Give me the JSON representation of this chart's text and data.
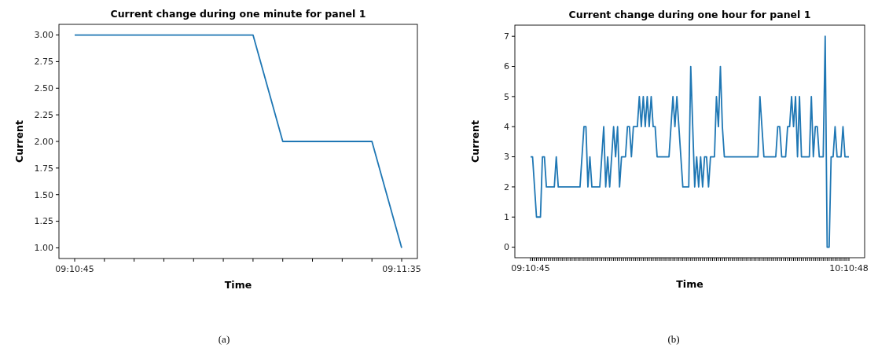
{
  "chart_data": [
    {
      "type": "line",
      "title": "Current change during one minute for panel 1",
      "xlabel": "Time",
      "ylabel": "Current",
      "categories": [
        "09:10:45",
        null,
        null,
        null,
        null,
        null,
        null,
        null,
        null,
        null,
        null,
        "09:11:35"
      ],
      "series": [
        {
          "color": "#1f77b4",
          "values": [
            3,
            3,
            3,
            3,
            3,
            3,
            3,
            2,
            2,
            2,
            2,
            1
          ]
        }
      ],
      "ylim": [
        0.9,
        3.1
      ],
      "yticks": [
        {
          "value": 1,
          "label": "1.00"
        },
        {
          "value": 1.25,
          "label": "1.25"
        },
        {
          "value": 1.5,
          "label": "1.50"
        },
        {
          "value": 1.75,
          "label": "1.75"
        },
        {
          "value": 2,
          "label": "2.00"
        },
        {
          "value": 2.25,
          "label": "2.25"
        },
        {
          "value": 2.5,
          "label": "2.50"
        },
        {
          "value": 2.75,
          "label": "2.75"
        },
        {
          "value": 3,
          "label": "3.00"
        }
      ],
      "grid": false,
      "annotations": [
        "(a)"
      ]
    },
    {
      "type": "line",
      "title": "Current change during one hour for panel 1",
      "xlabel": "Time",
      "ylabel": "Current",
      "categories": [
        "09:10:45",
        null,
        null,
        null,
        null,
        null,
        null,
        null,
        null,
        null,
        null,
        null,
        null,
        null,
        null,
        null,
        null,
        null,
        null,
        null,
        null,
        null,
        null,
        null,
        null,
        null,
        null,
        null,
        null,
        null,
        null,
        null,
        null,
        null,
        null,
        null,
        null,
        null,
        null,
        null,
        null,
        null,
        null,
        null,
        null,
        null,
        null,
        null,
        null,
        null,
        null,
        null,
        null,
        null,
        null,
        null,
        null,
        null,
        null,
        null,
        null,
        null,
        null,
        null,
        null,
        null,
        null,
        null,
        null,
        null,
        null,
        null,
        null,
        null,
        null,
        null,
        null,
        null,
        null,
        null,
        null,
        null,
        null,
        null,
        null,
        null,
        null,
        null,
        null,
        null,
        null,
        null,
        null,
        null,
        null,
        null,
        null,
        null,
        null,
        null,
        null,
        null,
        null,
        null,
        null,
        null,
        null,
        null,
        null,
        null,
        null,
        null,
        null,
        null,
        null,
        null,
        null,
        null,
        null,
        null,
        null,
        null,
        null,
        null,
        null,
        null,
        null,
        null,
        null,
        null,
        null,
        null,
        null,
        null,
        null,
        null,
        null,
        null,
        null,
        null,
        null,
        null,
        null,
        null,
        null,
        null,
        null,
        null,
        null,
        null,
        null,
        null,
        null,
        null,
        null,
        null,
        null,
        null,
        null,
        null,
        null,
        "10:10:48"
      ],
      "series": [
        {
          "color": "#1f77b4",
          "values": [
            3,
            3,
            2,
            1,
            1,
            1,
            3,
            3,
            2,
            2,
            2,
            2,
            2,
            3,
            2,
            2,
            2,
            2,
            2,
            2,
            2,
            2,
            2,
            2,
            2,
            2,
            3,
            4,
            4,
            2,
            3,
            2,
            2,
            2,
            2,
            2,
            3,
            4,
            2,
            3,
            2,
            3,
            4,
            3,
            4,
            2,
            3,
            3,
            3,
            4,
            4,
            3,
            4,
            4,
            4,
            5,
            4,
            5,
            4,
            5,
            4,
            5,
            4,
            4,
            3,
            3,
            3,
            3,
            3,
            3,
            3,
            4,
            5,
            4,
            5,
            4,
            3,
            2,
            2,
            2,
            2,
            6,
            4,
            2,
            3,
            2,
            3,
            2,
            3,
            3,
            2,
            3,
            3,
            3,
            5,
            4,
            6,
            4,
            3,
            3,
            3,
            3,
            3,
            3,
            3,
            3,
            3,
            3,
            3,
            3,
            3,
            3,
            3,
            3,
            3,
            3,
            5,
            4,
            3,
            3,
            3,
            3,
            3,
            3,
            3,
            4,
            4,
            3,
            3,
            3,
            4,
            4,
            5,
            4,
            5,
            3,
            5,
            3,
            3,
            3,
            3,
            3,
            5,
            3,
            4,
            4,
            3,
            3,
            3,
            7,
            0,
            0,
            3,
            3,
            4,
            3,
            3,
            3,
            4,
            3,
            3,
            3
          ]
        }
      ],
      "ylim": [
        -0.35,
        7.37
      ],
      "yticks": [
        0,
        1,
        2,
        3,
        4,
        5,
        6,
        7
      ],
      "grid": false,
      "annotations": [
        "(b)"
      ]
    }
  ]
}
